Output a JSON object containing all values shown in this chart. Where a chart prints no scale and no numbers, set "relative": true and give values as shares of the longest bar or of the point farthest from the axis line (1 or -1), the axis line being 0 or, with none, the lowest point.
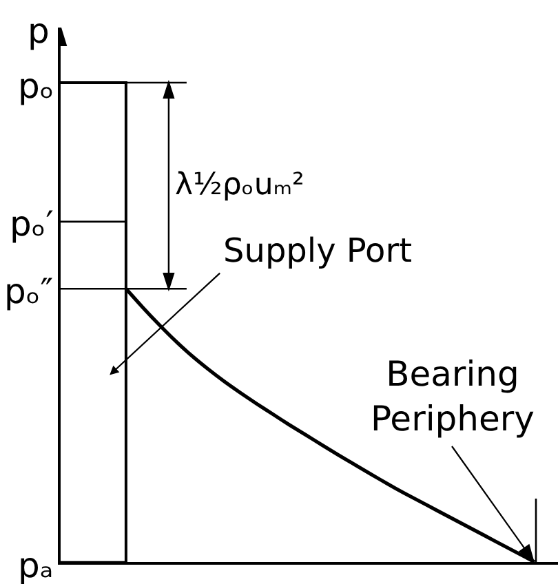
{
  "chart_data": {
    "type": "line",
    "relative": true,
    "ylabel": "p",
    "categories": [
      null,
      null,
      null,
      null,
      null,
      null,
      null,
      null,
      null,
      null,
      null,
      null,
      null,
      null,
      null,
      null,
      null,
      null,
      null,
      null,
      null,
      null,
      null,
      null,
      null,
      null,
      null,
      null,
      null,
      null
    ],
    "series": [
      {
        "type": "step",
        "color": "#000000",
        "values": [
          1,
          1,
          1,
          1,
          0,
          null,
          null,
          null,
          null,
          null,
          null,
          null,
          null,
          null,
          null,
          null,
          null,
          null,
          null,
          null,
          null,
          null,
          null,
          null,
          null,
          null,
          null,
          null,
          null,
          null
        ]
      },
      {
        "color": "#000000",
        "values": [
          null,
          null,
          null,
          null,
          0.57,
          0.532,
          0.496,
          0.462,
          0.431,
          0.403,
          0.377,
          0.353,
          0.33,
          0.308,
          0.286,
          0.265,
          0.244,
          0.223,
          0.203,
          0.183,
          0.163,
          0.144,
          0.126,
          0.108,
          0.09,
          0.072,
          0.054,
          0.036,
          0.018,
          0
        ]
      }
    ],
    "ref_lines": [
      {
        "axis": "y",
        "value": 1,
        "label": "pₒ"
      },
      {
        "axis": "y",
        "value": 0.71,
        "label": "pₒ′"
      },
      {
        "axis": "y",
        "value": 0.57,
        "label": "pₒ″"
      },
      {
        "axis": "y",
        "value": 0,
        "label": "pₐ"
      }
    ],
    "annotations": [
      "λ½ρₒuₘ²",
      "Supply Port",
      "Bearing\nPeriphery"
    ]
  }
}
